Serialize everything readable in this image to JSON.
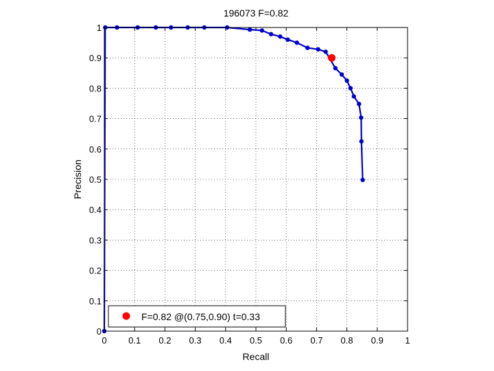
{
  "chart_data": {
    "type": "line",
    "title": "196073 F=0.82",
    "xlabel": "Recall",
    "ylabel": "Precision",
    "xlim": [
      0,
      1
    ],
    "ylim": [
      0,
      1
    ],
    "grid": true,
    "xticks": [
      "0",
      "0.1",
      "0.2",
      "0.3",
      "0.4",
      "0.5",
      "0.6",
      "0.7",
      "0.8",
      "0.9",
      "1"
    ],
    "yticks": [
      "0",
      "0.1",
      "0.2",
      "0.3",
      "0.4",
      "0.5",
      "0.6",
      "0.7",
      "0.8",
      "0.9",
      "1"
    ],
    "series": [
      {
        "color": "#0000cc",
        "points": [
          [
            0.0,
            0.0
          ],
          [
            0.003,
            1.0
          ],
          [
            0.042,
            1.0
          ],
          [
            0.11,
            1.0
          ],
          [
            0.17,
            1.0
          ],
          [
            0.22,
            1.0
          ],
          [
            0.275,
            1.0
          ],
          [
            0.33,
            1.0
          ],
          [
            0.405,
            1.0
          ],
          [
            0.48,
            0.993
          ],
          [
            0.52,
            0.99
          ],
          [
            0.55,
            0.978
          ],
          [
            0.58,
            0.97
          ],
          [
            0.605,
            0.96
          ],
          [
            0.635,
            0.95
          ],
          [
            0.67,
            0.933
          ],
          [
            0.705,
            0.928
          ],
          [
            0.73,
            0.92
          ],
          [
            0.762,
            0.866
          ],
          [
            0.783,
            0.845
          ],
          [
            0.8,
            0.825
          ],
          [
            0.812,
            0.8
          ],
          [
            0.823,
            0.773
          ],
          [
            0.84,
            0.748
          ],
          [
            0.847,
            0.703
          ],
          [
            0.848,
            0.625
          ],
          [
            0.852,
            0.498
          ]
        ]
      }
    ],
    "highlight": {
      "x": 0.75,
      "y": 0.9,
      "color": "#ff0000"
    },
    "legend": {
      "label": "F=0.82 @(0.75,0.90) t=0.33",
      "position": "bottom-left"
    }
  }
}
